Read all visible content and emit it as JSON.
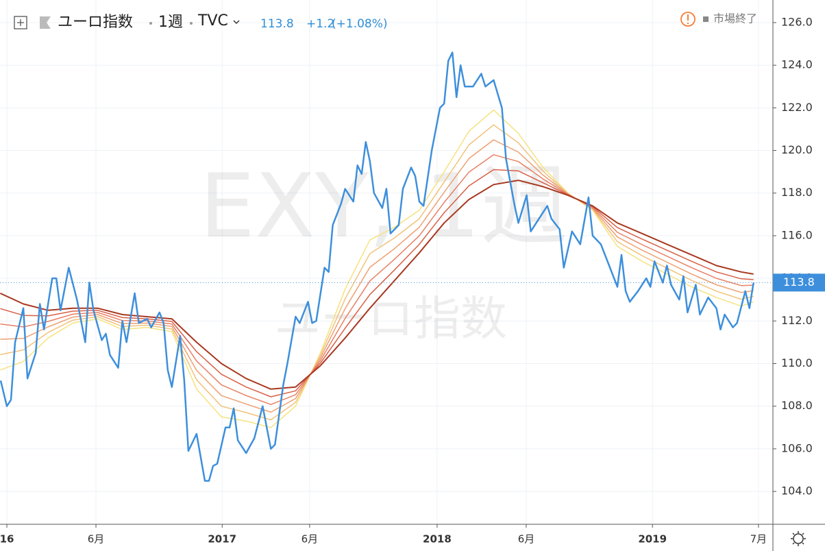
{
  "chart_data": {
    "type": "line",
    "title": "ユーロ指数",
    "interval": "1週",
    "source": "TVC",
    "last_price": 113.8,
    "change": "+1.2",
    "change_percent": "(+1.08%)",
    "market_status": "市場終了",
    "watermark": "EXY, 1週",
    "xlim": [
      -1.66,
      185.7
    ],
    "ylim": [
      102.46,
      127.06
    ],
    "grid": true,
    "xticks": [
      {
        "value": 0,
        "label": "16"
      },
      {
        "value": 21.6,
        "label": "6月"
      },
      {
        "value": 52.2,
        "label": "2017"
      },
      {
        "value": 73.4,
        "label": "6月"
      },
      {
        "value": 104.3,
        "label": "2018"
      },
      {
        "value": 125.9,
        "label": "6月"
      },
      {
        "value": 156.5,
        "label": "2019"
      },
      {
        "value": 182.2,
        "label": "7月"
      }
    ],
    "yticks": [
      {
        "value": 104,
        "label": "104.0"
      },
      {
        "value": 106,
        "label": "106.0"
      },
      {
        "value": 108,
        "label": "108.0"
      },
      {
        "value": 110,
        "label": "110.0"
      },
      {
        "value": 112,
        "label": "112.0"
      },
      {
        "value": 114,
        "label": "114.0"
      },
      {
        "value": 116,
        "label": "116.0"
      },
      {
        "value": 118,
        "label": "118.0"
      },
      {
        "value": 120,
        "label": "120.0"
      },
      {
        "value": 122,
        "label": "122.0"
      },
      {
        "value": 124,
        "label": "124.0"
      },
      {
        "value": 126,
        "label": "126.0"
      }
    ],
    "series": [
      {
        "color": "#f6e27f",
        "width": 1.5,
        "x": [
          -1.6,
          4,
          10,
          16,
          22,
          28,
          34,
          40,
          46,
          52,
          58,
          64,
          70,
          76,
          82,
          88,
          94,
          100,
          106,
          112,
          118,
          124,
          130,
          136,
          142,
          148,
          154,
          160,
          166,
          172,
          178,
          181
        ],
        "values": [
          109.7,
          110.1,
          111.2,
          111.9,
          112.1,
          111.6,
          111.7,
          111.5,
          108.8,
          107.5,
          107.3,
          107,
          108,
          110.5,
          113.5,
          115.8,
          116.4,
          117.2,
          119,
          120.9,
          121.9,
          120.8,
          119.2,
          118,
          117.2,
          115.5,
          114.8,
          114.2,
          113.6,
          113.1,
          112.7,
          112.9
        ]
      },
      {
        "color": "#f2c27a",
        "width": 1.5,
        "x": [
          -1.6,
          4,
          10,
          16,
          22,
          28,
          34,
          40,
          46,
          52,
          58,
          64,
          70,
          76,
          82,
          88,
          94,
          100,
          106,
          112,
          118,
          124,
          130,
          136,
          142,
          148,
          154,
          160,
          166,
          172,
          178,
          181
        ],
        "values": [
          110.42,
          110.64,
          111.46,
          112.04,
          112.2,
          111.74,
          111.8,
          111.62,
          109.24,
          108,
          107.7,
          107.36,
          108.18,
          110.38,
          113.04,
          115.16,
          115.9,
          116.8,
          118.52,
          120.26,
          121.2,
          120.36,
          119.02,
          117.98,
          117.24,
          115.72,
          115.06,
          114.48,
          113.9,
          113.4,
          113.02,
          113.16
        ]
      },
      {
        "color": "#eea070",
        "width": 1.5,
        "x": [
          -1.6,
          4,
          10,
          16,
          22,
          28,
          34,
          40,
          46,
          52,
          58,
          64,
          70,
          76,
          82,
          88,
          94,
          100,
          106,
          112,
          118,
          124,
          130,
          136,
          142,
          148,
          154,
          160,
          166,
          172,
          178,
          181
        ],
        "values": [
          111.14,
          111.18,
          111.72,
          112.18,
          112.3,
          111.88,
          111.9,
          111.74,
          109.68,
          108.5,
          108.1,
          107.72,
          108.36,
          110.26,
          112.58,
          114.52,
          115.4,
          116.4,
          118.04,
          119.62,
          120.5,
          119.92,
          118.84,
          117.96,
          117.28,
          115.94,
          115.32,
          114.76,
          114.2,
          113.7,
          113.34,
          113.42
        ]
      },
      {
        "color": "#e98065",
        "width": 1.5,
        "x": [
          -1.6,
          4,
          10,
          16,
          22,
          28,
          34,
          40,
          46,
          52,
          58,
          64,
          70,
          76,
          82,
          88,
          94,
          100,
          106,
          112,
          118,
          124,
          130,
          136,
          142,
          148,
          154,
          160,
          166,
          172,
          178,
          181
        ],
        "values": [
          111.86,
          111.72,
          111.98,
          112.32,
          112.4,
          112.02,
          112,
          111.86,
          110.12,
          109,
          108.5,
          108.08,
          108.54,
          110.14,
          112.12,
          113.88,
          114.9,
          116,
          117.56,
          118.98,
          119.8,
          119.48,
          118.66,
          117.94,
          117.32,
          116.16,
          115.58,
          115.04,
          114.5,
          114,
          113.66,
          113.68
        ]
      },
      {
        "color": "#d95f45",
        "width": 1.5,
        "x": [
          -1.6,
          4,
          10,
          16,
          22,
          28,
          34,
          40,
          46,
          52,
          58,
          64,
          70,
          76,
          82,
          88,
          94,
          100,
          106,
          112,
          118,
          124,
          130,
          136,
          142,
          148,
          154,
          160,
          166,
          172,
          178,
          181
        ],
        "values": [
          112.58,
          112.26,
          112.24,
          112.46,
          112.5,
          112.16,
          112.1,
          111.98,
          110.56,
          109.5,
          108.9,
          108.44,
          108.72,
          110.02,
          111.66,
          113.24,
          114.4,
          115.6,
          117.08,
          118.34,
          119.1,
          119.04,
          118.48,
          117.92,
          117.36,
          116.38,
          115.84,
          115.32,
          114.8,
          114.3,
          113.98,
          113.94
        ]
      },
      {
        "color": "#a8381f",
        "width": 2,
        "x": [
          -1.6,
          4,
          10,
          16,
          22,
          28,
          34,
          40,
          46,
          52,
          58,
          64,
          70,
          76,
          82,
          88,
          94,
          100,
          106,
          112,
          118,
          124,
          130,
          136,
          142,
          148,
          154,
          160,
          166,
          172,
          178,
          181
        ],
        "values": [
          113.3,
          112.8,
          112.5,
          112.6,
          112.6,
          112.3,
          112.2,
          112.1,
          111,
          110,
          109.3,
          108.8,
          108.9,
          109.9,
          111.2,
          112.6,
          113.9,
          115.2,
          116.6,
          117.7,
          118.4,
          118.6,
          118.3,
          117.9,
          117.4,
          116.6,
          116.1,
          115.6,
          115.1,
          114.6,
          114.3,
          114.2
        ]
      },
      {
        "color": "#3d8fdc",
        "width": 2.5,
        "x": [
          -1.5,
          0,
          1,
          2,
          4,
          5,
          7,
          8,
          9,
          11,
          12,
          13,
          15,
          17,
          19,
          20,
          21,
          23,
          24,
          25,
          27,
          28,
          29,
          31,
          32,
          34,
          35,
          37,
          38,
          39,
          40,
          42,
          43,
          44,
          46,
          48,
          49,
          50,
          51,
          53,
          54,
          55,
          56,
          58,
          60,
          62,
          64,
          65,
          67,
          68,
          70,
          71,
          73,
          74,
          75,
          77,
          78,
          79,
          81,
          82,
          84,
          85,
          86,
          87,
          88,
          89,
          91,
          92,
          93,
          95,
          96,
          98,
          99,
          100,
          101,
          103,
          105,
          106,
          107,
          108,
          109,
          110,
          111,
          113,
          115,
          116,
          118,
          120,
          121,
          123,
          124,
          126,
          127,
          129,
          131,
          132,
          134,
          135,
          137,
          139,
          141,
          142,
          144,
          146,
          148,
          149,
          150,
          151,
          153,
          155,
          156,
          157,
          159,
          160,
          161,
          163,
          164,
          165,
          167,
          168,
          170,
          172,
          173,
          174,
          176,
          177,
          179,
          180,
          181
        ],
        "values": [
          109.2,
          108,
          108.3,
          111,
          112.6,
          109.3,
          110.5,
          112.8,
          111.6,
          114,
          114,
          112.5,
          114.5,
          113,
          111,
          113.8,
          112.5,
          111.1,
          111.4,
          110.4,
          109.8,
          112,
          111,
          113.3,
          111.9,
          112.1,
          111.7,
          112.4,
          111.9,
          109.7,
          108.9,
          111.3,
          109.2,
          105.9,
          106.7,
          104.5,
          104.5,
          105.2,
          105.3,
          107,
          107,
          107.9,
          106.4,
          105.8,
          106.5,
          108,
          106,
          106.2,
          109,
          110,
          112.2,
          111.9,
          112.9,
          111.9,
          112,
          114.5,
          114.3,
          116.5,
          117.5,
          118.2,
          117.6,
          119.3,
          118.9,
          120.4,
          119.5,
          118,
          117.3,
          118.2,
          116.1,
          116.5,
          118.2,
          119.2,
          118.8,
          117.6,
          117.4,
          120,
          122,
          122.2,
          124.2,
          124.6,
          122.5,
          124,
          123,
          123,
          123.6,
          123,
          123.3,
          122,
          119.6,
          117.5,
          116.6,
          117.9,
          116.2,
          116.8,
          117.4,
          116.8,
          116.3,
          114.5,
          116.2,
          115.6,
          117.8,
          116,
          115.6,
          114.6,
          113.6,
          115.1,
          113.4,
          112.9,
          113.4,
          114,
          113.6,
          114.8,
          113.8,
          114.6,
          113.7,
          113,
          114.1,
          112.4,
          113.7,
          112.3,
          113.1,
          112.6,
          111.6,
          112.3,
          111.7,
          111.9,
          113.4,
          112.6,
          113.8
        ]
      }
    ]
  }
}
